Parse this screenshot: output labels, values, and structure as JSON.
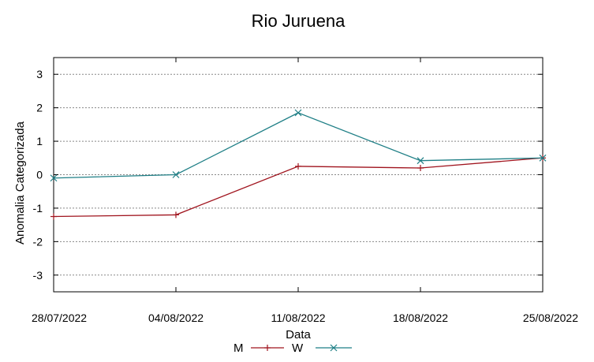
{
  "chart_data": {
    "type": "line",
    "title": "Rio Juruena",
    "xlabel": "Data",
    "ylabel": "Anomalia Categorizada",
    "categories": [
      "28/07/2022",
      "04/08/2022",
      "11/08/2022",
      "18/08/2022",
      "25/08/2022"
    ],
    "ylim": [
      -3.5,
      3.5
    ],
    "yticks": [
      "3",
      "2",
      "1",
      "0",
      "-1",
      "-2",
      "-3"
    ],
    "ytick_values": [
      3,
      2,
      1,
      0,
      -1,
      -2,
      -3
    ],
    "grid": true,
    "legend_position": "bottom-center",
    "series": [
      {
        "name": "M",
        "marker": "plus",
        "color": "#a0141e",
        "values": [
          -1.25,
          -1.2,
          0.25,
          0.2,
          0.5
        ]
      },
      {
        "name": "W",
        "marker": "cross",
        "color": "#1f7f86",
        "values": [
          -0.1,
          0.0,
          1.85,
          0.42,
          0.5
        ]
      }
    ]
  }
}
